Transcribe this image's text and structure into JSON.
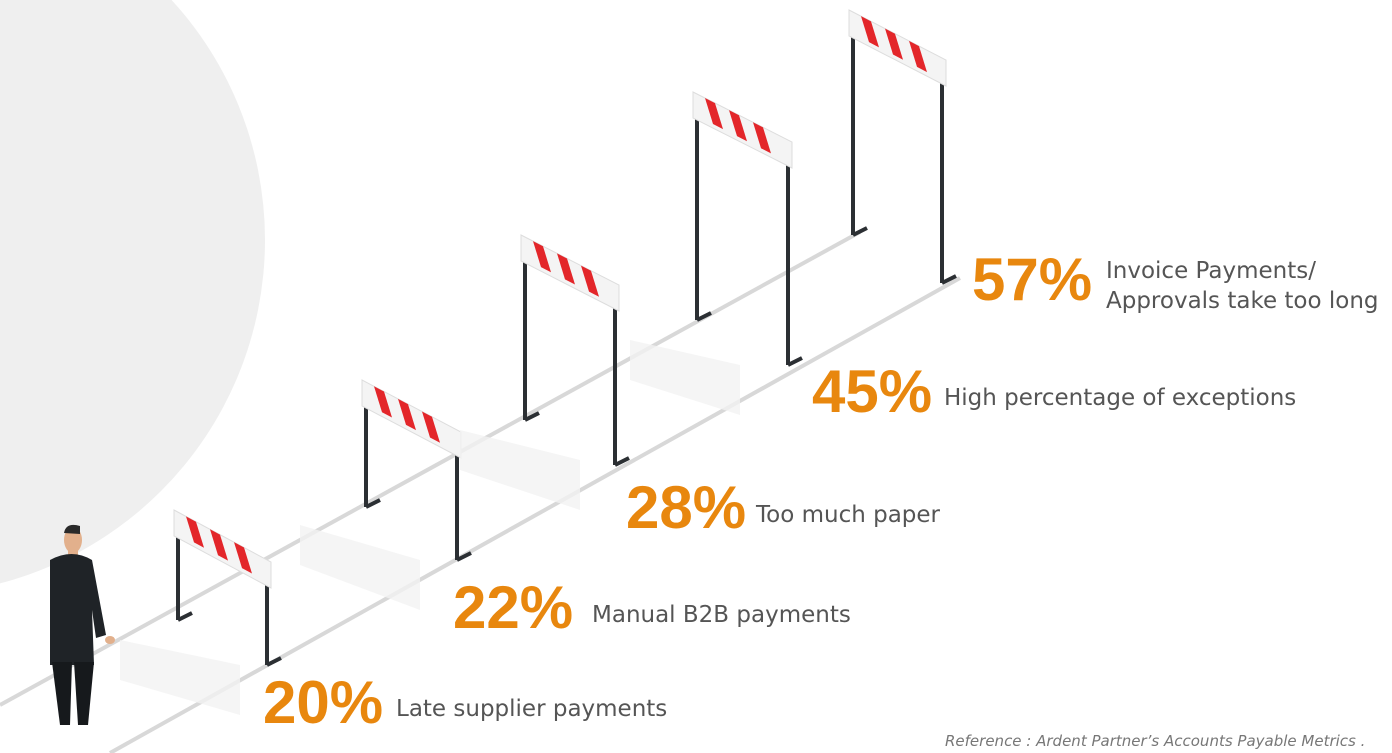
{
  "items": [
    {
      "percent": "20%",
      "label": [
        "Late supplier payments"
      ]
    },
    {
      "percent": "22%",
      "label": [
        "Manual B2B payments"
      ]
    },
    {
      "percent": "28%",
      "label": [
        "Too much paper"
      ]
    },
    {
      "percent": "45%",
      "label": [
        "High percentage of exceptions"
      ]
    },
    {
      "percent": "57%",
      "label": [
        "Invoice Payments/",
        "Approvals take too long"
      ]
    }
  ],
  "reference": "Reference : Ardent Partner’s Accounts Payable Metrics ."
}
